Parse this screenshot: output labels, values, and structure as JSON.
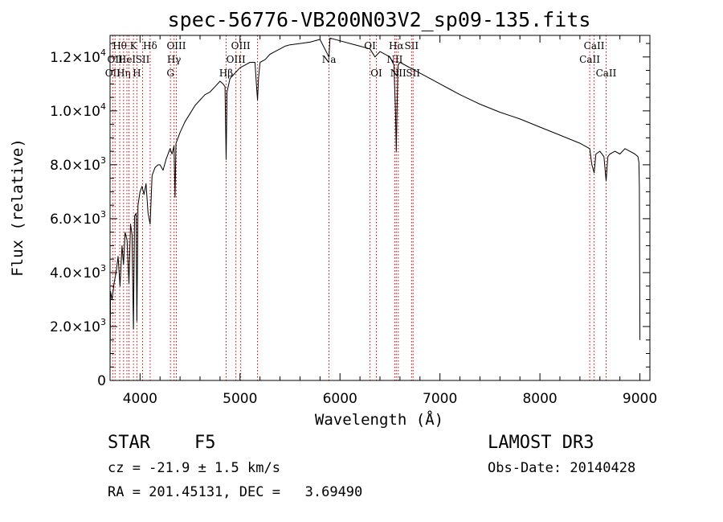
{
  "chart_data": {
    "type": "line",
    "title": "spec-56776-VB200N03V2_sp09-135.fits",
    "xlabel": "Wavelength (Å)",
    "ylabel": "Flux (relative)",
    "xlim": [
      3700,
      9100
    ],
    "ylim": [
      0,
      12800
    ],
    "xticks": [
      4000,
      5000,
      6000,
      7000,
      8000,
      9000
    ],
    "yticks": [
      {
        "value": 0,
        "mantissa": "0",
        "exp": ""
      },
      {
        "value": 2000,
        "mantissa": "2.0×10",
        "exp": "3"
      },
      {
        "value": 4000,
        "mantissa": "4.0×10",
        "exp": "3"
      },
      {
        "value": 6000,
        "mantissa": "6.0×10",
        "exp": "3"
      },
      {
        "value": 8000,
        "mantissa": "8.0×10",
        "exp": "3"
      },
      {
        "value": 10000,
        "mantissa": "1.0×10",
        "exp": "4"
      },
      {
        "value": 12000,
        "mantissa": "1.2×10",
        "exp": "4"
      }
    ],
    "line_color": "#000000",
    "marker_color": "#cc0000",
    "series": [
      {
        "name": "flux",
        "x": [
          3700,
          3705,
          3720,
          3740,
          3760,
          3780,
          3800,
          3820,
          3835,
          3850,
          3870,
          3889,
          3905,
          3920,
          3934,
          3945,
          3960,
          3968,
          3980,
          4000,
          4020,
          4040,
          4060,
          4080,
          4101,
          4120,
          4150,
          4180,
          4200,
          4230,
          4260,
          4300,
          4320,
          4340,
          4350,
          4360,
          4380,
          4400,
          4450,
          4500,
          4550,
          4600,
          4650,
          4700,
          4750,
          4800,
          4830,
          4850,
          4861,
          4870,
          4900,
          4950,
          5000,
          5050,
          5100,
          5150,
          5167,
          5175,
          5185,
          5200,
          5250,
          5300,
          5350,
          5400,
          5450,
          5500,
          5600,
          5700,
          5800,
          5890,
          5900,
          6000,
          6100,
          6200,
          6300,
          6350,
          6400,
          6500,
          6540,
          6555,
          6563,
          6570,
          6580,
          6600,
          6700,
          6800,
          6900,
          7000,
          7100,
          7200,
          7400,
          7600,
          7800,
          8000,
          8200,
          8400,
          8498,
          8520,
          8542,
          8560,
          8600,
          8640,
          8662,
          8680,
          8700,
          8750,
          8800,
          8850,
          8900,
          8950,
          8980,
          8990,
          8995,
          9000
        ],
        "values": [
          300,
          3300,
          3000,
          3600,
          4000,
          4600,
          3500,
          5000,
          4300,
          5500,
          5200,
          3600,
          5800,
          5400,
          1900,
          6100,
          6200,
          2200,
          6500,
          7000,
          7200,
          6900,
          7300,
          6200,
          5800,
          7600,
          7900,
          8000,
          8000,
          7800,
          8200,
          8600,
          8400,
          8700,
          6800,
          8800,
          9000,
          9200,
          9600,
          9900,
          10200,
          10400,
          10600,
          10700,
          10900,
          11100,
          11000,
          10900,
          8200,
          10700,
          11200,
          11400,
          11600,
          11700,
          11800,
          11800,
          10800,
          10400,
          11200,
          11800,
          11900,
          12100,
          12200,
          12300,
          12400,
          12450,
          12500,
          12550,
          12650,
          12000,
          12700,
          12600,
          12500,
          12400,
          12300,
          12000,
          12200,
          12000,
          11700,
          10000,
          8500,
          10000,
          11700,
          11800,
          11600,
          11400,
          11200,
          11000,
          10800,
          10600,
          10250,
          9950,
          9700,
          9400,
          9100,
          8800,
          8600,
          8000,
          7700,
          8400,
          8500,
          8300,
          7400,
          8300,
          8400,
          8500,
          8400,
          8600,
          8500,
          8400,
          8300,
          8100,
          7200,
          1500
        ]
      }
    ],
    "line_markers": [
      {
        "wavelength": 3727,
        "label": "OII",
        "row": 2
      },
      {
        "wavelength": 3750,
        "label": "OII",
        "row": 1
      },
      {
        "wavelength": 3797,
        "label": "Hθ",
        "row": 0
      },
      {
        "wavelength": 3835,
        "label": "Hη",
        "row": 2
      },
      {
        "wavelength": 3869,
        "label": "HeI",
        "row": 1
      },
      {
        "wavelength": 3889,
        "label": "",
        "row": -1
      },
      {
        "wavelength": 3934,
        "label": "K",
        "row": 0
      },
      {
        "wavelength": 3968,
        "label": "H",
        "row": 2
      },
      {
        "wavelength": 4026,
        "label": "SII",
        "row": 1
      },
      {
        "wavelength": 4101,
        "label": "Hδ",
        "row": 0
      },
      {
        "wavelength": 4304,
        "label": "G",
        "row": 2
      },
      {
        "wavelength": 4340,
        "label": "Hγ",
        "row": 1
      },
      {
        "wavelength": 4363,
        "label": "OIII",
        "row": 0
      },
      {
        "wavelength": 4861,
        "label": "Hβ",
        "row": 2
      },
      {
        "wavelength": 4959,
        "label": "OIII",
        "row": 1
      },
      {
        "wavelength": 5007,
        "label": "OIII",
        "row": 0
      },
      {
        "wavelength": 5175,
        "label": "",
        "row": -1
      },
      {
        "wavelength": 5890,
        "label": "Na",
        "row": 1
      },
      {
        "wavelength": 6300,
        "label": "OI",
        "row": 0
      },
      {
        "wavelength": 6364,
        "label": "OI",
        "row": 2
      },
      {
        "wavelength": 6548,
        "label": "NII",
        "row": 1
      },
      {
        "wavelength": 6563,
        "label": "Hα",
        "row": 0
      },
      {
        "wavelength": 6583,
        "label": "NII",
        "row": 2
      },
      {
        "wavelength": 6716,
        "label": "SII",
        "row": 0
      },
      {
        "wavelength": 6731,
        "label": "SII",
        "row": 2
      },
      {
        "wavelength": 8498,
        "label": "CaII",
        "row": 1
      },
      {
        "wavelength": 8542,
        "label": "CaII",
        "row": 0
      },
      {
        "wavelength": 8662,
        "label": "CaII",
        "row": 2
      }
    ]
  },
  "info": {
    "object_class": "STAR",
    "subclass": "F5",
    "survey": "LAMOST DR3",
    "cz": "cz = -21.9 ± 1.5 km/s",
    "obs_date": "Obs-Date: 20140428",
    "coords": "RA = 201.45131, DEC =   3.69490"
  }
}
